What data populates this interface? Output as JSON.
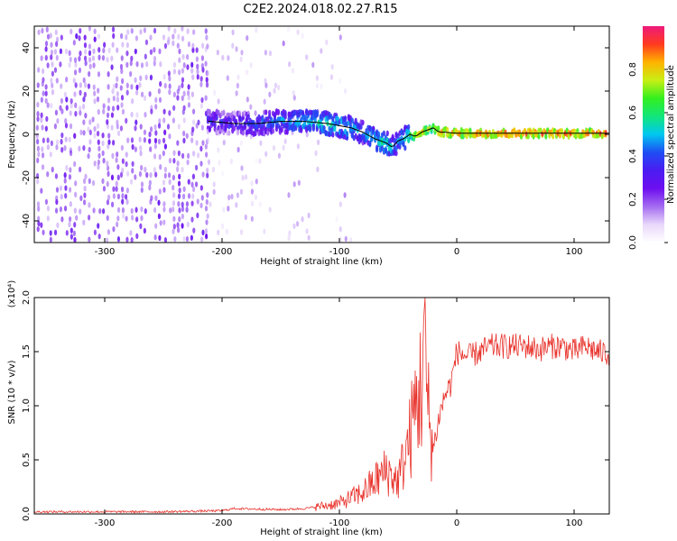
{
  "title": "C2E2.2024.018.02.27.R15",
  "colors": {
    "snr_line": "#e8322b",
    "fit_line": "#000000",
    "colormap": [
      "#ffffff",
      "#e9d8fb",
      "#a46bf0",
      "#6d0ef0",
      "#4b1cf2",
      "#1f4df4",
      "#00c8f0",
      "#12e67a",
      "#33ef1f",
      "#c8ef14",
      "#ffb300",
      "#ff3a1e",
      "#ee1a7c"
    ]
  },
  "chart_data": [
    {
      "type": "heatmap",
      "xlabel": "Height of straight line (km)",
      "ylabel": "Frequency (Hz)",
      "xlim": [
        -360,
        130
      ],
      "ylim": [
        -50,
        50
      ],
      "xticks": [
        -300,
        -200,
        -100,
        0,
        100
      ],
      "yticks": [
        -40,
        -20,
        0,
        20,
        40
      ],
      "colorbar": {
        "label": "Normalized spectral amplitude",
        "range": [
          0.0,
          1.0
        ],
        "ticks": [
          0.0,
          0.2,
          0.4,
          0.6,
          0.8
        ]
      },
      "ridge": {
        "x": [
          -210,
          -190,
          -170,
          -150,
          -130,
          -110,
          -90,
          -80,
          -70,
          -60,
          -55,
          -50,
          -45,
          -40,
          -35,
          -30,
          -25,
          -20,
          -15,
          -10,
          0,
          50,
          100,
          130
        ],
        "y": [
          6,
          5,
          5,
          6,
          6,
          5,
          3,
          1,
          -2,
          -4,
          -6,
          -3,
          -2,
          0,
          -1,
          1,
          2,
          3,
          1,
          1,
          0.5,
          0.5,
          0.5,
          0.5
        ],
        "amplitude": [
          0.35,
          0.35,
          0.4,
          0.45,
          0.5,
          0.55,
          0.5,
          0.45,
          0.5,
          0.55,
          0.5,
          0.45,
          0.5,
          0.6,
          0.75,
          0.8,
          0.75,
          0.7,
          0.85,
          0.9,
          0.85,
          0.92,
          0.88,
          0.9
        ]
      }
    },
    {
      "type": "line",
      "xlabel": "Height of straight line (km)",
      "ylabel": "SNR (10 * v/v)",
      "multiplier_label": "(x10⁴)",
      "xlim": [
        -360,
        130
      ],
      "ylim": [
        0.0,
        2.0
      ],
      "xticks": [
        -300,
        -200,
        -100,
        0,
        100
      ],
      "yticks": [
        "0.0",
        "0.5",
        "1.0",
        "1.5",
        "2.0"
      ],
      "series": [
        {
          "x": [
            -360,
            -300,
            -250,
            -200,
            -190,
            -150,
            -130,
            -110,
            -100,
            -90,
            -80,
            -70,
            -60,
            -50,
            -45,
            -40,
            -35,
            -30,
            -28,
            -25,
            -20,
            -15,
            -10,
            -5,
            0,
            10,
            20,
            30,
            40,
            50,
            60,
            70,
            80,
            90,
            100,
            110,
            120,
            130
          ],
          "y": [
            0.02,
            0.02,
            0.02,
            0.03,
            0.05,
            0.04,
            0.05,
            0.08,
            0.1,
            0.15,
            0.2,
            0.3,
            0.4,
            0.3,
            0.5,
            0.7,
            1.0,
            1.2,
            1.7,
            1.0,
            0.6,
            0.9,
            1.1,
            1.2,
            1.5,
            1.45,
            1.5,
            1.55,
            1.55,
            1.55,
            1.55,
            1.52,
            1.55,
            1.55,
            1.5,
            1.55,
            1.5,
            1.48
          ]
        }
      ]
    }
  ]
}
